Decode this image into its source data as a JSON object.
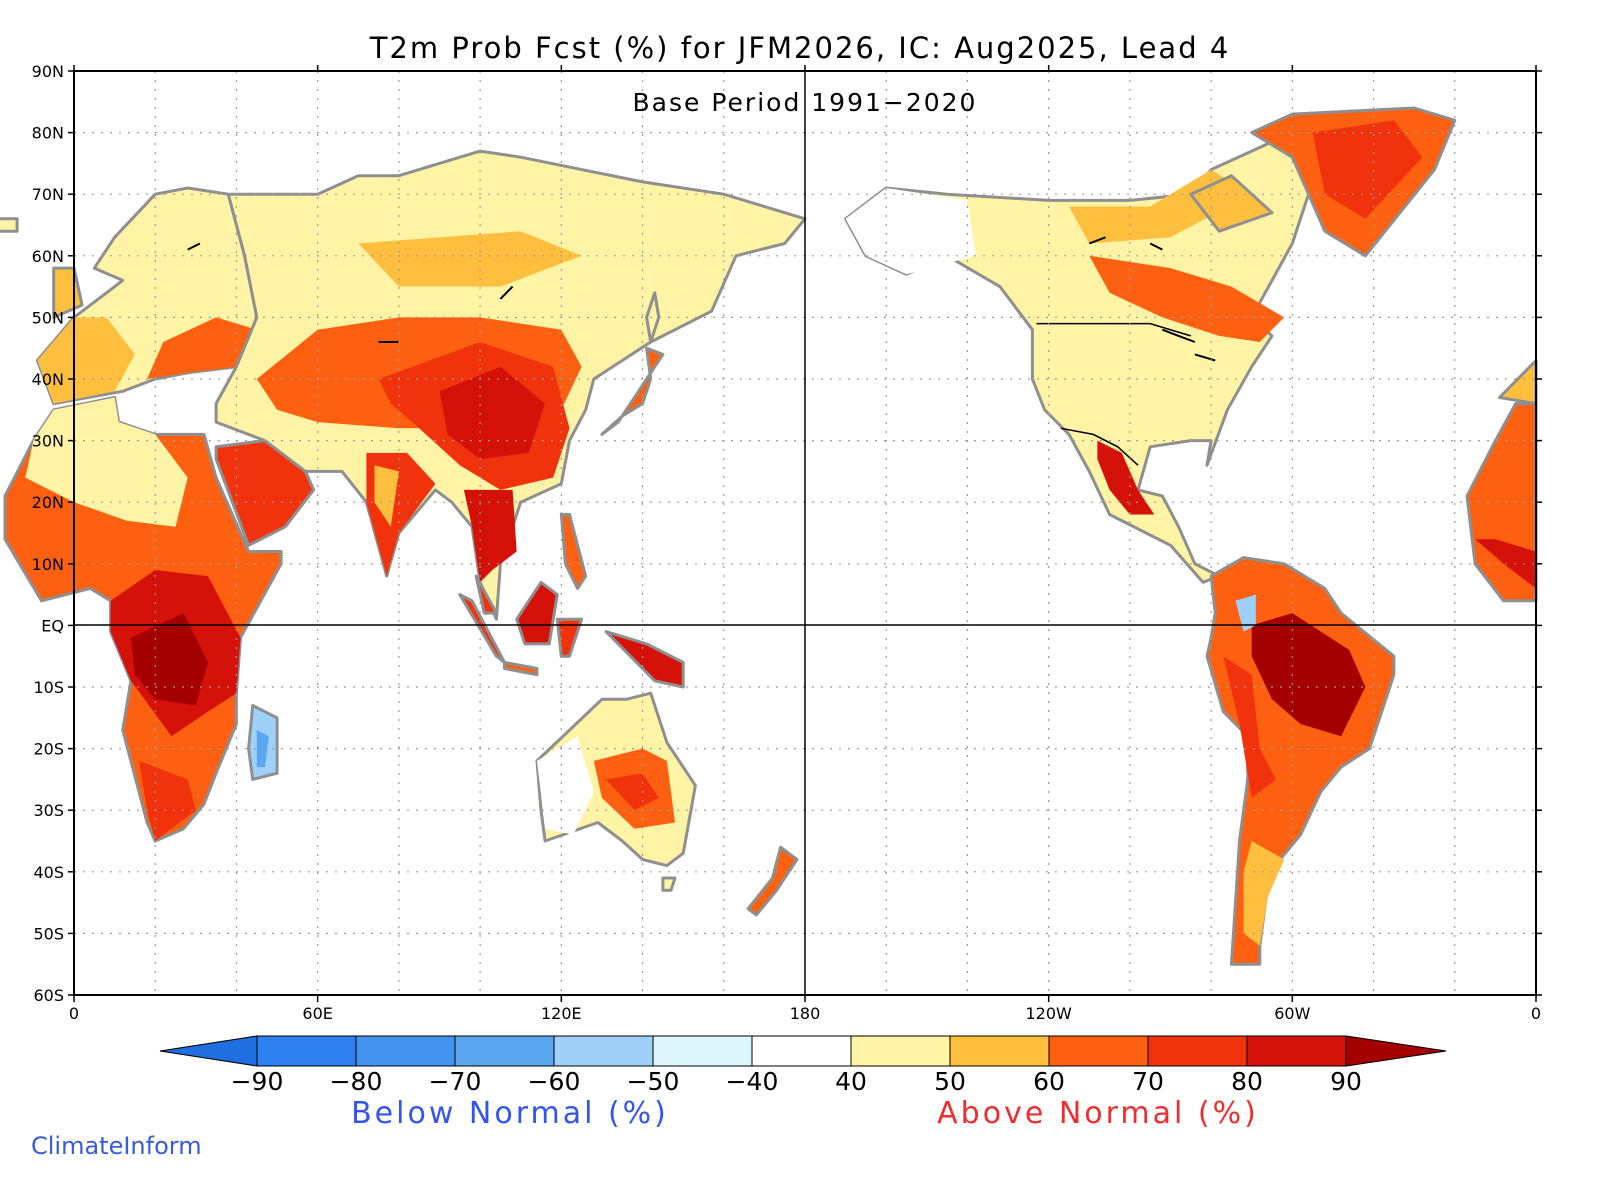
{
  "title": "T2m Prob Fcst (%) for JFM2026, IC: Aug2025, Lead 4",
  "subtitle": "Base Period 1991−2020",
  "map": {
    "y_ticks": [
      "90N",
      "80N",
      "70N",
      "60N",
      "50N",
      "40N",
      "30N",
      "20N",
      "10N",
      "EQ",
      "10S",
      "20S",
      "30S",
      "40S",
      "50S",
      "60S"
    ],
    "x_ticks": [
      "0",
      "60E",
      "120E",
      "180",
      "120W",
      "60W",
      "0"
    ],
    "lon_range": [
      0,
      360
    ],
    "lat_range": [
      -60,
      90
    ],
    "projection": "equirectangular (longitude 0 to 360)",
    "reference_lines": [
      "Equator",
      "180"
    ],
    "grid": "dotted"
  },
  "colorbar": {
    "labels": [
      "−90",
      "−80",
      "−70",
      "−60",
      "−50",
      "−40",
      "40",
      "50",
      "60",
      "70",
      "80",
      "90"
    ],
    "colors": [
      "#1f6fe0",
      "#2e80ee",
      "#4493ee",
      "#5aa6f0",
      "#9fd0f7",
      "#ddf6fb",
      "#ffffff",
      "#fff4a6",
      "#ffbf3e",
      "#fd6010",
      "#f1330d",
      "#d5120a",
      "#a50000"
    ],
    "below_label": "Below Normal (%)",
    "above_label": "Above Normal (%)",
    "below_color": "#3355ee",
    "above_color": "#ee2e2e"
  },
  "credit": {
    "text": "ClimateInform",
    "color": "#3a5bd9"
  }
}
